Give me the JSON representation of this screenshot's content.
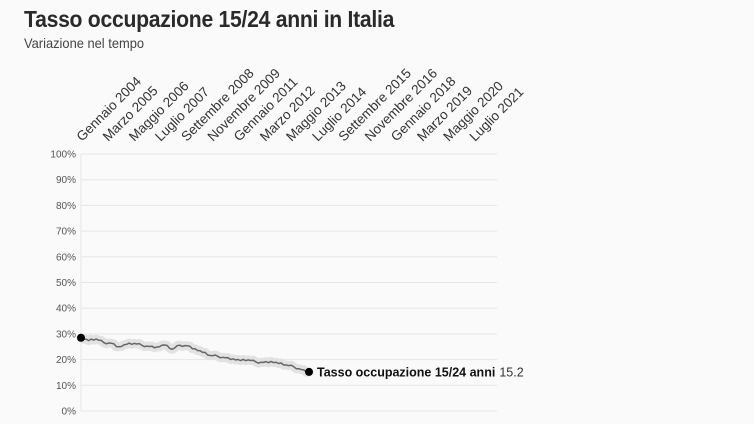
{
  "header": {
    "title": "Tasso occupazione 15/24 anni in Italia",
    "subtitle": "Variazione nel tempo"
  },
  "colors": {
    "line": "#666666",
    "band": "#e2e2e2",
    "endpoint": "#000000",
    "grid": "#e6e6e6"
  },
  "end_label": {
    "series_name": "Tasso occupazione 15/24 anni",
    "value": "15.2"
  },
  "chart_data": {
    "type": "line",
    "title": "Tasso occupazione 15/24 anni in Italia",
    "subtitle": "Variazione nel tempo",
    "xlabel": "",
    "ylabel": "",
    "ylim": [
      0,
      100
    ],
    "yticks": [
      "0%",
      "10%",
      "20%",
      "30%",
      "40%",
      "50%",
      "60%",
      "70%",
      "80%",
      "90%",
      "100%"
    ],
    "grid": true,
    "legend": "direct label at line end",
    "categories": [
      "Gennaio 2004",
      "Marzo 2005",
      "Maggio 2006",
      "Luglio 2007",
      "Settembre 2008",
      "Novembre 2009",
      "Gennaio 2011",
      "Marzo 2012",
      "Maggio 2013",
      "Luglio 2014",
      "Settembre 2015",
      "Novembre 2016",
      "Gennaio 2018",
      "Marzo 2019",
      "Maggio 2020",
      "Luglio 2021"
    ],
    "series": [
      {
        "name": "Tasso occupazione 15/24 anni",
        "x": [
          "Gennaio 2004",
          "2004",
          "2005",
          "2005",
          "2006",
          "2006",
          "2007",
          "2007",
          "2008",
          "2008",
          "2009",
          "2009",
          "2010",
          "2010",
          "2011",
          "2011",
          "2012",
          "2012",
          "2013",
          "2013",
          "2014",
          "2014",
          "2015",
          "2015",
          "2016",
          "2016",
          "2017",
          "2017",
          "2018",
          "2018",
          "2019"
        ],
        "values": [
          28.5,
          27.4,
          28.0,
          26.6,
          26.4,
          25.0,
          25.9,
          26.3,
          25.6,
          25.1,
          24.9,
          25.7,
          24.0,
          25.6,
          25.4,
          24.2,
          22.8,
          21.6,
          21.3,
          20.7,
          20.3,
          19.6,
          19.9,
          19.1,
          18.9,
          19.3,
          18.5,
          17.9,
          17.2,
          16.1,
          15.2
        ],
        "last_value": 15.2
      }
    ]
  }
}
